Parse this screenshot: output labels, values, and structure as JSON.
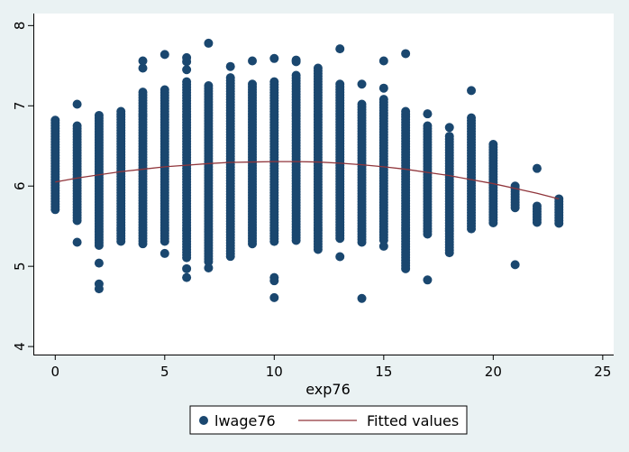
{
  "chart_data": {
    "type": "scatter",
    "xlabel": "exp76",
    "ylabel": "",
    "xlim": [
      -1,
      25.5
    ],
    "ylim": [
      3.9,
      8.15
    ],
    "xticks": [
      0,
      5,
      10,
      15,
      20,
      25
    ],
    "yticks": [
      4,
      5,
      6,
      7,
      8
    ],
    "grid": false,
    "legend_position": "bottom",
    "colors": {
      "scatter": "#1a476f",
      "fitted": "#90353b",
      "plot_background": "#ffffff",
      "outer_background": "#eaf2f3"
    },
    "series": [
      {
        "name": "lwage76",
        "kind": "scatter",
        "columns": [
          {
            "x": 0,
            "y_low": 5.7,
            "y_high": 6.82,
            "outliers": []
          },
          {
            "x": 1,
            "y_low": 5.55,
            "y_high": 6.75,
            "outliers": [
              5.3,
              7.02
            ]
          },
          {
            "x": 2,
            "y_low": 5.25,
            "y_high": 6.88,
            "outliers": [
              4.72,
              4.78,
              5.04
            ]
          },
          {
            "x": 3,
            "y_low": 5.28,
            "y_high": 6.93,
            "outliers": []
          },
          {
            "x": 4,
            "y_low": 5.25,
            "y_high": 7.17,
            "outliers": [
              7.47,
              7.56
            ]
          },
          {
            "x": 5,
            "y_low": 5.28,
            "y_high": 7.2,
            "outliers": [
              5.16,
              7.64
            ]
          },
          {
            "x": 6,
            "y_low": 5.1,
            "y_high": 7.3,
            "outliers": [
              4.86,
              4.97,
              7.45,
              7.55,
              7.6
            ]
          },
          {
            "x": 7,
            "y_low": 5.05,
            "y_high": 7.25,
            "outliers": [
              4.98,
              7.78
            ]
          },
          {
            "x": 8,
            "y_low": 5.1,
            "y_high": 7.35,
            "outliers": [
              7.49
            ]
          },
          {
            "x": 9,
            "y_low": 5.25,
            "y_high": 7.27,
            "outliers": [
              7.56
            ]
          },
          {
            "x": 10,
            "y_low": 5.3,
            "y_high": 7.3,
            "outliers": [
              4.61,
              4.82,
              4.86,
              7.59
            ]
          },
          {
            "x": 11,
            "y_low": 5.3,
            "y_high": 7.38,
            "outliers": [
              7.55,
              7.57
            ]
          },
          {
            "x": 12,
            "y_low": 5.2,
            "y_high": 7.47,
            "outliers": []
          },
          {
            "x": 13,
            "y_low": 5.32,
            "y_high": 7.27,
            "outliers": [
              5.12,
              7.71
            ]
          },
          {
            "x": 14,
            "y_low": 5.28,
            "y_high": 7.02,
            "outliers": [
              4.6,
              7.27
            ]
          },
          {
            "x": 15,
            "y_low": 5.3,
            "y_high": 7.08,
            "outliers": [
              5.25,
              7.22,
              7.56
            ]
          },
          {
            "x": 16,
            "y_low": 5.0,
            "y_high": 6.93,
            "outliers": [
              4.97,
              7.65
            ]
          },
          {
            "x": 17,
            "y_low": 5.38,
            "y_high": 6.75,
            "outliers": [
              4.83,
              6.9
            ]
          },
          {
            "x": 18,
            "y_low": 5.15,
            "y_high": 6.62,
            "outliers": [
              6.73
            ]
          },
          {
            "x": 19,
            "y_low": 5.45,
            "y_high": 6.85,
            "outliers": [
              7.19
            ]
          },
          {
            "x": 20,
            "y_low": 5.52,
            "y_high": 6.52,
            "outliers": []
          },
          {
            "x": 21,
            "y_low": 5.72,
            "y_high": 6.0,
            "outliers": [
              5.02
            ]
          },
          {
            "x": 22,
            "y_low": 5.52,
            "y_high": 5.75,
            "outliers": [
              6.22
            ]
          },
          {
            "x": 23,
            "y_low": 5.52,
            "y_high": 5.84,
            "outliers": []
          }
        ]
      },
      {
        "name": "Fitted values",
        "kind": "line",
        "x": [
          0,
          1,
          2,
          3,
          4,
          5,
          6,
          7,
          8,
          9,
          10,
          11,
          12,
          13,
          14,
          15,
          16,
          17,
          18,
          19,
          20,
          21,
          22,
          23
        ],
        "y": [
          6.05,
          6.1,
          6.14,
          6.18,
          6.21,
          6.24,
          6.26,
          6.28,
          6.295,
          6.3,
          6.305,
          6.305,
          6.3,
          6.285,
          6.265,
          6.24,
          6.21,
          6.17,
          6.13,
          6.08,
          6.03,
          5.97,
          5.91,
          5.84
        ]
      }
    ]
  }
}
